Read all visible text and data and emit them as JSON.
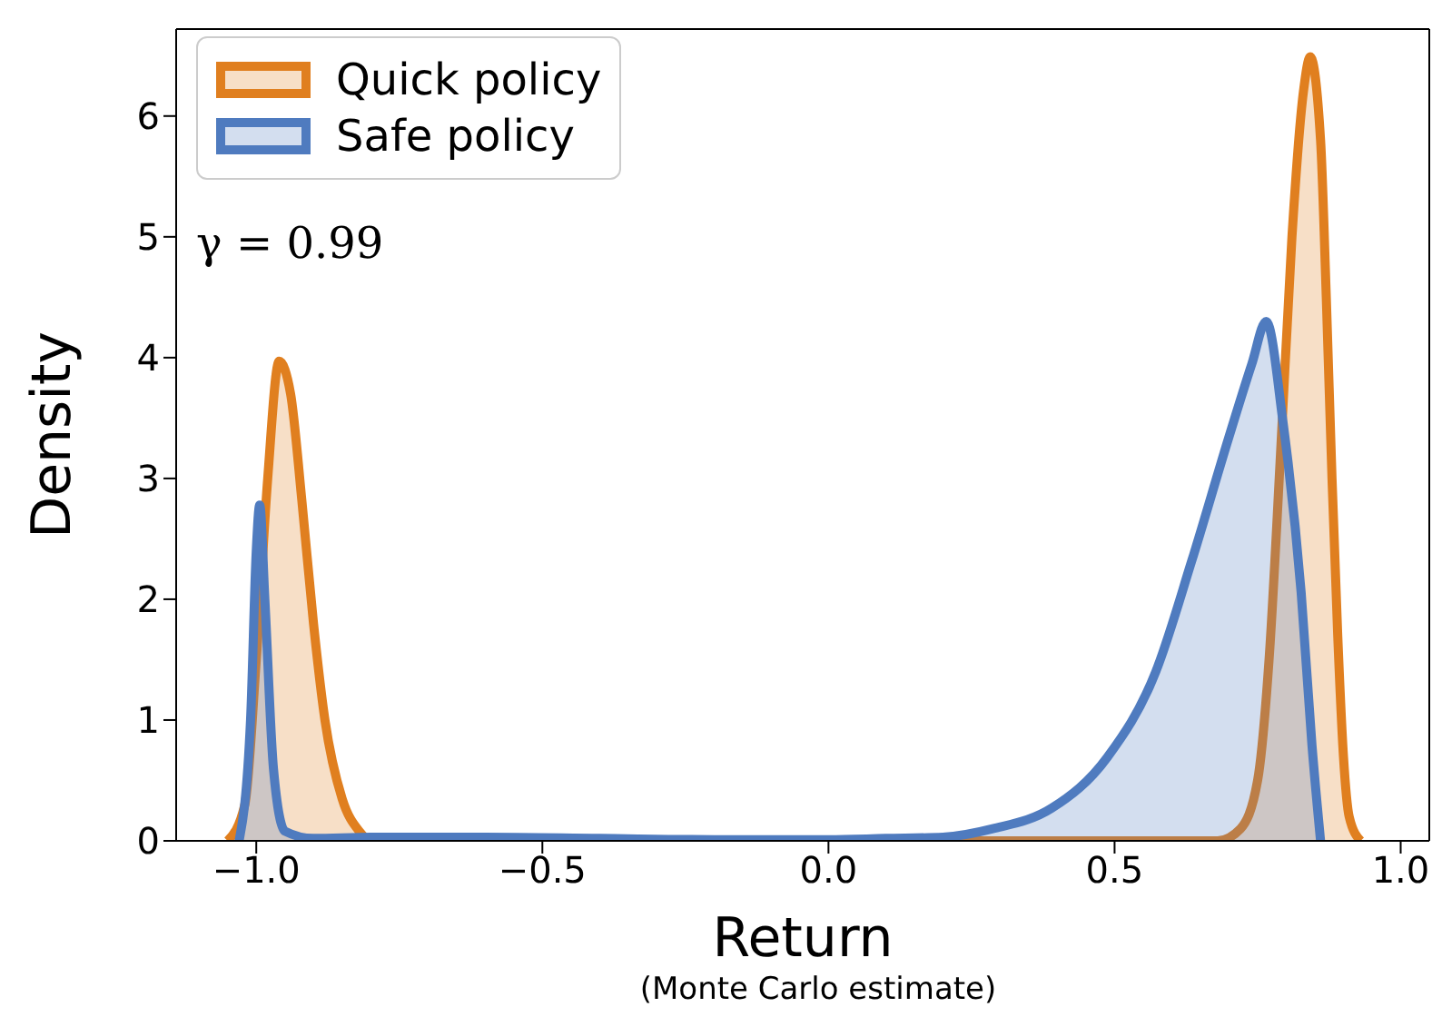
{
  "chart_data": {
    "type": "area",
    "xlabel": "Return",
    "ylabel": "Density",
    "annotations": [
      "γ = 0.99",
      "(Monte Carlo estimate)"
    ],
    "xlim": [
      -1.14,
      1.05
    ],
    "xticks": [
      {
        "value": -1,
        "label": "−1.0"
      },
      {
        "value": -0.5,
        "label": "−0.5"
      },
      {
        "value": 0,
        "label": "0.0"
      },
      {
        "value": 0.5,
        "label": "0.5"
      },
      {
        "value": 1,
        "label": "1.0"
      }
    ],
    "ylim": [
      0,
      6.72
    ],
    "yticks": [
      0,
      1,
      2,
      3,
      4,
      5,
      6
    ],
    "legend": "top left",
    "series": [
      {
        "name": "Quick policy",
        "color": "#e07f1f",
        "x": [
          -1.05,
          -1.02,
          -1.0,
          -0.98,
          -0.96,
          -0.94,
          -0.92,
          -0.9,
          -0.88,
          -0.85,
          -0.82,
          -0.8,
          -0.5,
          0.0,
          0.5,
          0.68,
          0.72,
          0.75,
          0.77,
          0.79,
          0.81,
          0.83,
          0.842,
          0.86,
          0.87,
          0.88,
          0.89,
          0.9,
          0.91,
          0.93
        ],
        "values": [
          0,
          0.3,
          1.5,
          3.0,
          3.97,
          3.7,
          2.8,
          1.8,
          1.0,
          0.35,
          0.08,
          0,
          0,
          0,
          0,
          0,
          0.1,
          0.5,
          1.5,
          3.2,
          5.0,
          6.2,
          6.49,
          5.8,
          4.5,
          3.0,
          1.7,
          0.7,
          0.2,
          0
        ]
      },
      {
        "name": "Safe policy",
        "color": "#4f7bbf",
        "x": [
          -1.03,
          -1.01,
          -1.0,
          -0.994,
          -0.985,
          -0.97,
          -0.95,
          -0.9,
          -0.8,
          -0.6,
          -0.4,
          -0.2,
          0.0,
          0.1,
          0.2,
          0.287,
          0.39,
          0.487,
          0.572,
          0.635,
          0.699,
          0.74,
          0.765,
          0.794,
          0.826,
          0.845,
          0.86
        ],
        "values": [
          0,
          1.0,
          2.4,
          2.78,
          2.0,
          0.6,
          0.08,
          0.02,
          0.03,
          0.03,
          0.02,
          0.01,
          0.01,
          0.02,
          0.03,
          0.1,
          0.27,
          0.69,
          1.4,
          2.32,
          3.33,
          3.95,
          4.3,
          3.48,
          2.06,
          0.79,
          0
        ]
      }
    ]
  }
}
